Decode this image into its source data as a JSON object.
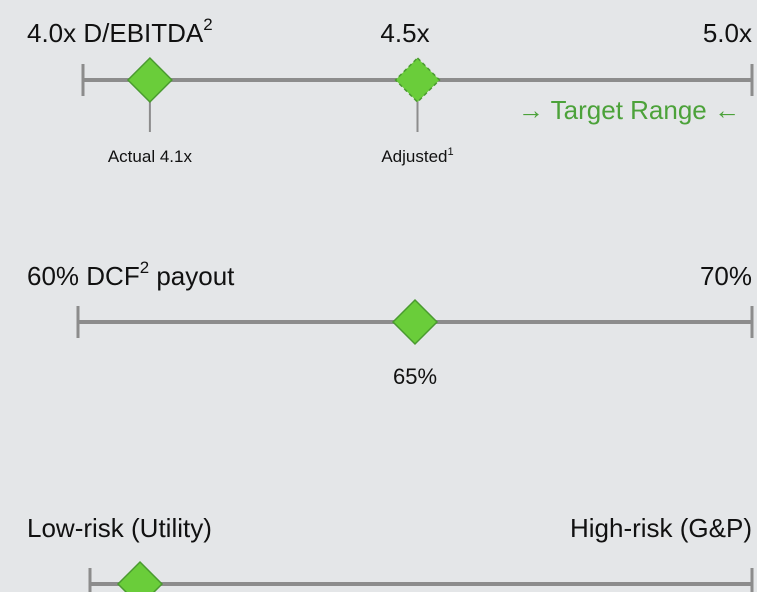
{
  "scales": [
    {
      "left_label": "4.0x D/EBITDA",
      "left_sup": "2",
      "middle_label": "4.5x",
      "right_label": "5.0x",
      "range": [
        4.0,
        5.0
      ],
      "markers": [
        {
          "value": 4.1,
          "label": "Actual 4.1x"
        },
        {
          "value": 4.5,
          "label": "Adjusted",
          "sup": "1",
          "dashed": true
        }
      ],
      "target_label": "→ Target Range ←"
    },
    {
      "left_label": "60% DCF",
      "left_sup": "2",
      "left_suffix": " payout",
      "right_label": "70%",
      "range": [
        60,
        70
      ],
      "markers": [
        {
          "value": 65,
          "label": "65%"
        }
      ]
    },
    {
      "left_label": "Low-risk (Utility)",
      "right_label": "High-risk (G&P)"
    }
  ]
}
